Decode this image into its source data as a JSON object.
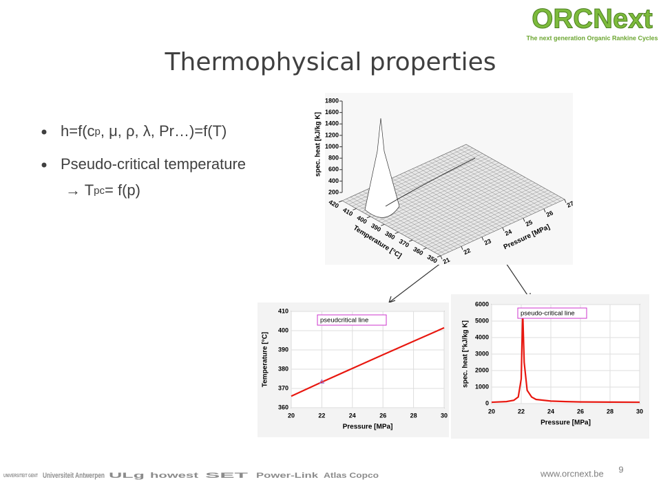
{
  "slide": {
    "title": "Thermophysical properties",
    "logo": "ORCNext",
    "tagline": "The next generation Organic Rankine Cycles",
    "bullets": [
      [
        "h=f(c",
        "p",
        ", μ, ρ, λ, Pr…)=f(T)"
      ],
      [
        "Pseudo-critical temperature"
      ],
      [
        "→ T",
        "pc",
        "= f(p)"
      ]
    ],
    "url": "www.orcnext.be",
    "page": "9",
    "partners": [
      "UNIVERSITEIT GENT",
      "Universiteit Antwerpen",
      "ULg",
      "howest",
      "SET",
      "Power-Link",
      "Atlas Copco"
    ]
  },
  "chart_data": [
    {
      "type": "surface",
      "zlabel": "spec. heat [kJ/kg K]",
      "xlabel": "Pressure [MPa]",
      "ylabel": "Temperature [°C]",
      "zlim": [
        200,
        1800
      ],
      "zticks": [
        200,
        400,
        600,
        800,
        1000,
        1200,
        1400,
        1600,
        1800
      ],
      "xlim": [
        21,
        27
      ],
      "xticks": [
        21,
        22,
        23,
        24,
        25,
        26,
        27
      ],
      "ylim": [
        350,
        420
      ],
      "yticks": [
        350,
        360,
        370,
        380,
        390,
        400,
        410,
        420
      ]
    },
    {
      "type": "line",
      "legend": "pseudcritical line",
      "xlabel": "Pressure [MPa]",
      "ylabel": "Temperature [°C]",
      "xlim": [
        20,
        30
      ],
      "xticks": [
        20,
        22,
        24,
        26,
        28,
        30
      ],
      "ylim": [
        360,
        410
      ],
      "yticks": [
        360,
        370,
        380,
        390,
        400,
        410
      ],
      "grid": true,
      "series": [
        {
          "color": "#e8170f",
          "x": [
            20,
            22,
            24,
            26,
            28,
            30
          ],
          "values": [
            366,
            373.3,
            380.4,
            387.5,
            394.5,
            401.5
          ]
        }
      ],
      "points": [
        {
          "x": 22,
          "y": 373.5,
          "color": "#9966cc"
        }
      ]
    },
    {
      "type": "line",
      "legend": "pseudo-critical line",
      "xlabel": "Pressure [MPa]",
      "ylabel": "spec. heat [°kJ/kg K]",
      "xlim": [
        20,
        30
      ],
      "xticks": [
        20,
        22,
        24,
        26,
        28,
        30
      ],
      "ylim": [
        0,
        6000
      ],
      "yticks": [
        0,
        1000,
        2000,
        3000,
        4000,
        5000,
        6000
      ],
      "grid": true,
      "series": [
        {
          "color": "#e8170f",
          "x": [
            20,
            21,
            21.5,
            21.8,
            22,
            22.1,
            22.2,
            22.4,
            22.7,
            23,
            24,
            25,
            26,
            28,
            30
          ],
          "values": [
            80,
            120,
            200,
            400,
            1500,
            5600,
            2500,
            800,
            400,
            250,
            150,
            120,
            100,
            90,
            80
          ]
        }
      ]
    }
  ]
}
